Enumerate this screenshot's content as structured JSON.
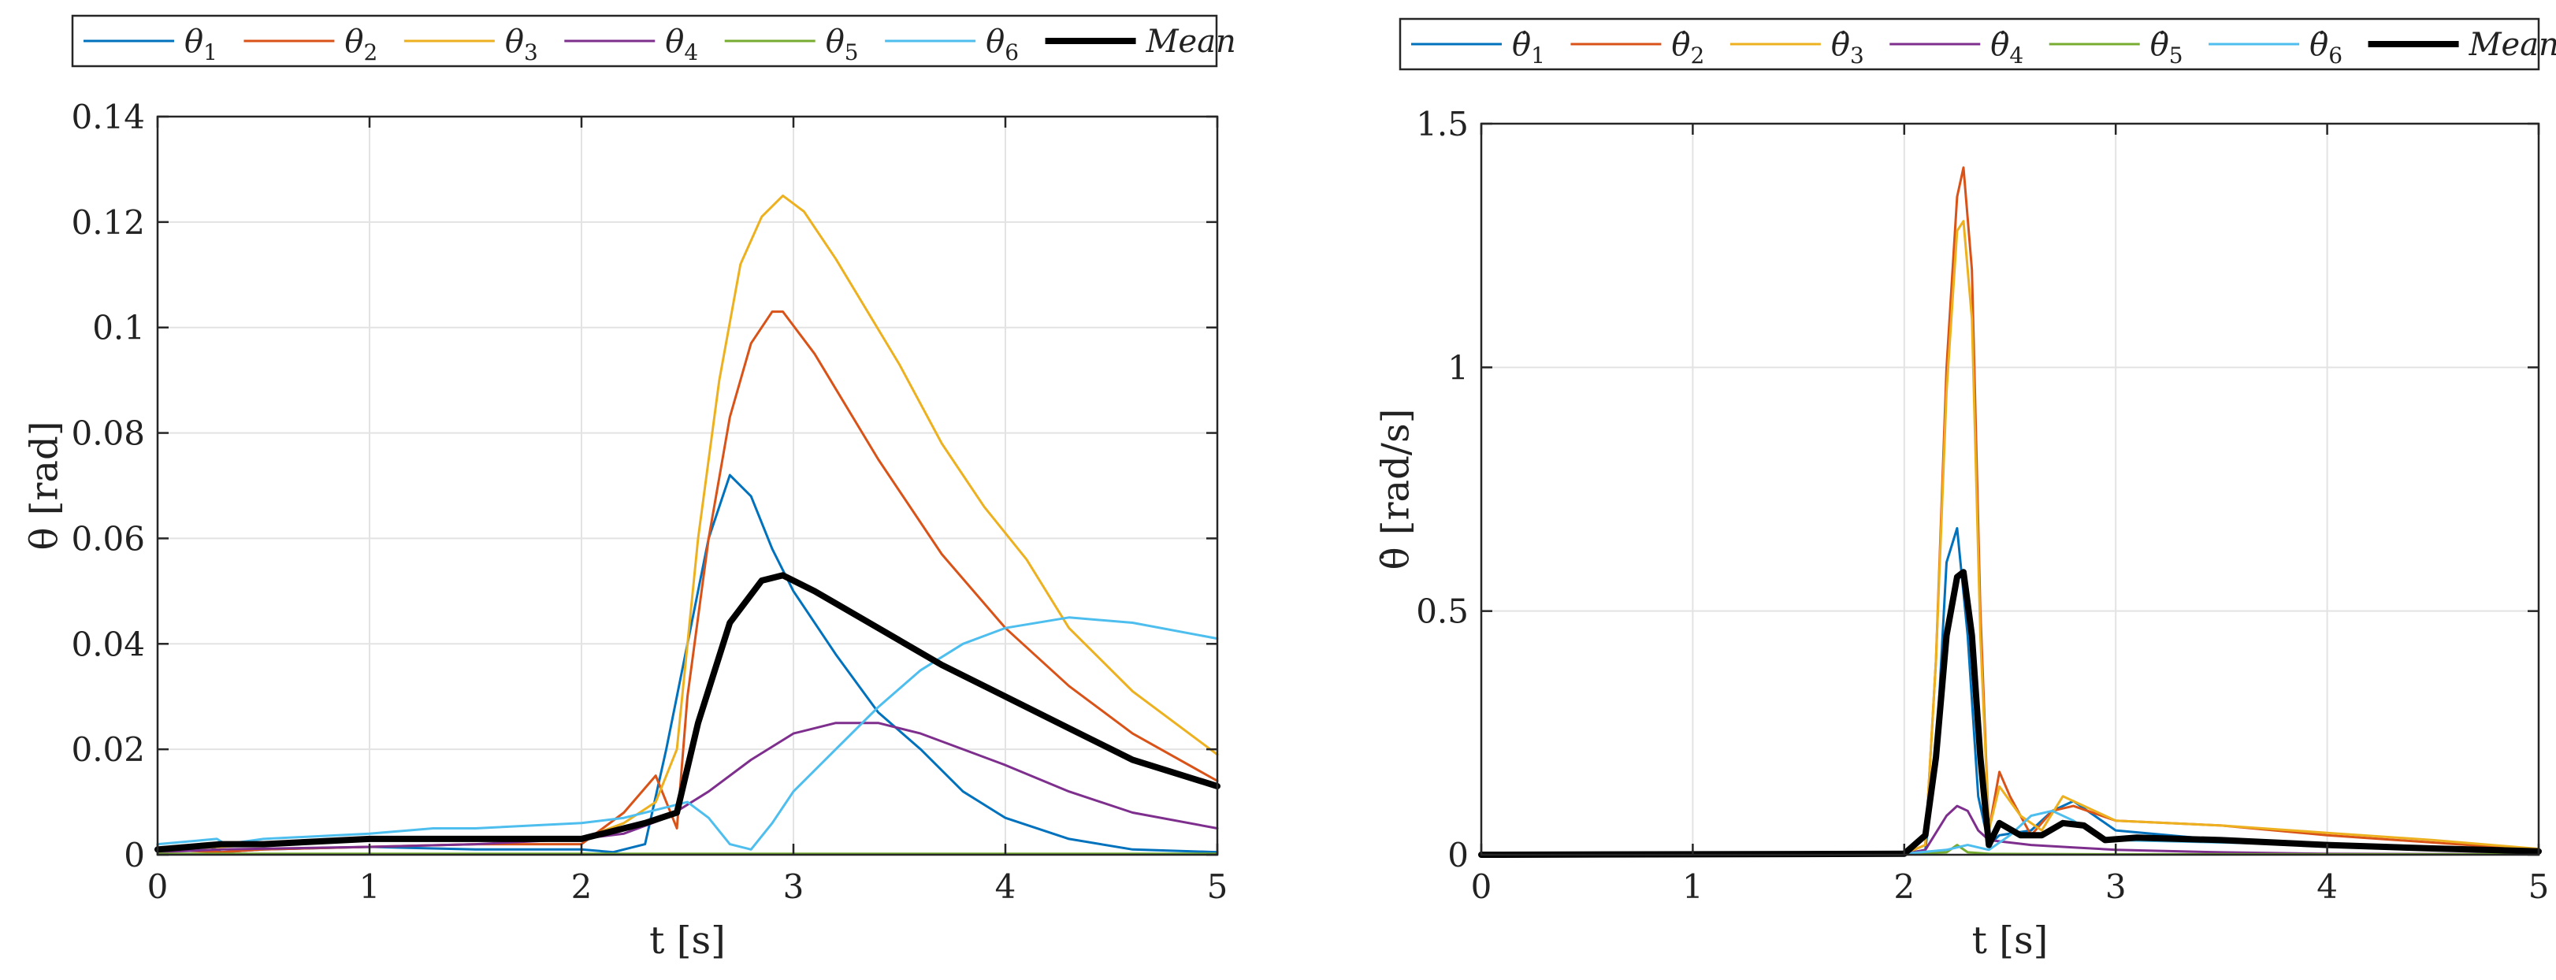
{
  "chart_data": [
    {
      "type": "line",
      "id": "angle",
      "title": "",
      "xlabel": "t [s]",
      "ylabel": "θ [rad]",
      "xlim": [
        0,
        5
      ],
      "ylim": [
        0,
        0.14
      ],
      "xticks": [
        0,
        1,
        2,
        3,
        4,
        5
      ],
      "xtick_labels": [
        "0",
        "1",
        "2",
        "3",
        "4",
        "5"
      ],
      "yticks": [
        0,
        0.02,
        0.04,
        0.06,
        0.08,
        0.1,
        0.12,
        0.14
      ],
      "ytick_labels": [
        "0",
        "0.02",
        "0.04",
        "0.06",
        "0.08",
        "0.1",
        "0.12",
        "0.14"
      ],
      "grid": true,
      "legend_placement": "top",
      "series": [
        {
          "name": "θ1",
          "label_base": "θ",
          "label_sub": "1",
          "color": "#0072BD",
          "width": 3,
          "x": [
            0,
            0.25,
            0.3,
            0.5,
            1.0,
            1.5,
            2.0,
            2.15,
            2.3,
            2.4,
            2.5,
            2.6,
            2.7,
            2.8,
            2.9,
            3.0,
            3.2,
            3.4,
            3.6,
            3.8,
            4.0,
            4.3,
            4.6,
            5.0
          ],
          "y": [
            0.001,
            0.0015,
            0.0005,
            0.001,
            0.0015,
            0.001,
            0.001,
            0.0005,
            0.002,
            0.02,
            0.04,
            0.06,
            0.072,
            0.068,
            0.058,
            0.05,
            0.038,
            0.027,
            0.02,
            0.012,
            0.007,
            0.003,
            0.001,
            0.0005
          ]
        },
        {
          "name": "θ2",
          "label_base": "θ",
          "label_sub": "2",
          "color": "#D95319",
          "width": 3,
          "x": [
            0,
            0.3,
            0.5,
            1.0,
            1.5,
            2.0,
            2.2,
            2.35,
            2.45,
            2.5,
            2.6,
            2.7,
            2.8,
            2.9,
            2.95,
            3.1,
            3.4,
            3.7,
            4.0,
            4.3,
            4.6,
            5.0
          ],
          "y": [
            0.001,
            0.0005,
            0.001,
            0.0015,
            0.002,
            0.002,
            0.008,
            0.015,
            0.005,
            0.03,
            0.06,
            0.083,
            0.097,
            0.103,
            0.103,
            0.095,
            0.075,
            0.057,
            0.043,
            0.032,
            0.023,
            0.014
          ]
        },
        {
          "name": "θ3",
          "label_base": "θ",
          "label_sub": "3",
          "color": "#EDB120",
          "width": 3,
          "x": [
            0,
            0.3,
            0.5,
            1.0,
            1.5,
            2.0,
            2.2,
            2.35,
            2.45,
            2.55,
            2.65,
            2.75,
            2.85,
            2.95,
            3.05,
            3.2,
            3.5,
            3.7,
            3.9,
            4.1,
            4.3,
            4.6,
            5.0
          ],
          "y": [
            0.001,
            0.0015,
            0.002,
            0.003,
            0.003,
            0.003,
            0.006,
            0.01,
            0.02,
            0.06,
            0.09,
            0.112,
            0.121,
            0.125,
            0.122,
            0.113,
            0.093,
            0.078,
            0.066,
            0.056,
            0.043,
            0.031,
            0.019
          ]
        },
        {
          "name": "θ4",
          "label_base": "θ",
          "label_sub": "4",
          "color": "#7E2F8E",
          "width": 3,
          "x": [
            0,
            0.3,
            1.0,
            1.5,
            2.0,
            2.2,
            2.4,
            2.6,
            2.8,
            3.0,
            3.2,
            3.4,
            3.6,
            3.8,
            4.0,
            4.3,
            4.6,
            5.0
          ],
          "y": [
            0.0005,
            0.001,
            0.0015,
            0.002,
            0.003,
            0.004,
            0.007,
            0.012,
            0.018,
            0.023,
            0.025,
            0.025,
            0.023,
            0.02,
            0.017,
            0.012,
            0.008,
            0.005
          ]
        },
        {
          "name": "θ5",
          "label_base": "θ",
          "label_sub": "5",
          "color": "#77AC30",
          "width": 3,
          "x": [
            0,
            1.0,
            2.0,
            3.0,
            4.0,
            5.0
          ],
          "y": [
            0.0002,
            0.0002,
            0.0002,
            0.0002,
            0.0002,
            0.0002
          ]
        },
        {
          "name": "θ6",
          "label_base": "θ",
          "label_sub": "6",
          "color": "#4DBEEE",
          "width": 3,
          "x": [
            0,
            0.28,
            0.32,
            0.5,
            1.0,
            1.3,
            1.5,
            2.0,
            2.2,
            2.4,
            2.5,
            2.6,
            2.7,
            2.8,
            2.9,
            3.0,
            3.2,
            3.4,
            3.6,
            3.8,
            4.0,
            4.3,
            4.6,
            5.0
          ],
          "y": [
            0.002,
            0.003,
            0.002,
            0.003,
            0.004,
            0.005,
            0.005,
            0.006,
            0.007,
            0.009,
            0.01,
            0.007,
            0.002,
            0.001,
            0.006,
            0.012,
            0.02,
            0.028,
            0.035,
            0.04,
            0.043,
            0.045,
            0.044,
            0.041
          ]
        },
        {
          "name": "Mean",
          "label_base": "Mean",
          "label_sub": "",
          "color": "#000000",
          "width": 8,
          "x": [
            0,
            0.3,
            0.5,
            1.0,
            1.5,
            2.0,
            2.1,
            2.3,
            2.45,
            2.55,
            2.7,
            2.85,
            2.95,
            3.1,
            3.4,
            3.7,
            4.0,
            4.3,
            4.6,
            5.0
          ],
          "y": [
            0.001,
            0.002,
            0.002,
            0.003,
            0.003,
            0.003,
            0.004,
            0.006,
            0.008,
            0.025,
            0.044,
            0.052,
            0.053,
            0.05,
            0.043,
            0.036,
            0.03,
            0.024,
            0.018,
            0.013
          ]
        }
      ]
    },
    {
      "type": "line",
      "id": "velocity",
      "title": "",
      "xlabel": "t [s]",
      "ylabel": "θ̇ [rad/s]",
      "xlim": [
        0,
        5
      ],
      "ylim": [
        0,
        1.5
      ],
      "xticks": [
        0,
        1,
        2,
        3,
        4,
        5
      ],
      "xtick_labels": [
        "0",
        "1",
        "2",
        "3",
        "4",
        "5"
      ],
      "yticks": [
        0,
        0.5,
        1,
        1.5
      ],
      "ytick_labels": [
        "0",
        "0.5",
        "1",
        "1.5"
      ],
      "grid": true,
      "legend_placement": "top",
      "series": [
        {
          "name": "θ̇1",
          "label_base": "θ̇",
          "label_sub": "1",
          "color": "#0072BD",
          "width": 3,
          "x": [
            0,
            2.0,
            2.1,
            2.15,
            2.2,
            2.25,
            2.3,
            2.35,
            2.4,
            2.45,
            2.6,
            2.7,
            2.8,
            2.9,
            3.0,
            3.5,
            4.0,
            4.5,
            5.0
          ],
          "y": [
            0,
            0.002,
            0.01,
            0.2,
            0.6,
            0.67,
            0.45,
            0.12,
            0.02,
            0.04,
            0.05,
            0.09,
            0.11,
            0.08,
            0.05,
            0.03,
            0.02,
            0.01,
            0.005
          ]
        },
        {
          "name": "θ̇2",
          "label_base": "θ̇",
          "label_sub": "2",
          "color": "#D95319",
          "width": 3,
          "x": [
            0,
            2.0,
            2.1,
            2.15,
            2.2,
            2.25,
            2.28,
            2.32,
            2.36,
            2.4,
            2.45,
            2.5,
            2.6,
            2.7,
            2.8,
            3.0,
            3.5,
            4.0,
            4.5,
            5.0
          ],
          "y": [
            0,
            0.002,
            0.02,
            0.4,
            1.0,
            1.35,
            1.41,
            1.2,
            0.5,
            0.05,
            0.17,
            0.12,
            0.04,
            0.09,
            0.1,
            0.07,
            0.06,
            0.04,
            0.025,
            0.01
          ]
        },
        {
          "name": "θ̇3",
          "label_base": "θ̇",
          "label_sub": "3",
          "color": "#EDB120",
          "width": 3,
          "x": [
            0,
            2.0,
            2.1,
            2.15,
            2.2,
            2.25,
            2.28,
            2.32,
            2.36,
            2.4,
            2.45,
            2.55,
            2.65,
            2.75,
            2.85,
            3.0,
            3.5,
            4.0,
            4.5,
            5.0
          ],
          "y": [
            0,
            0.002,
            0.02,
            0.4,
            0.95,
            1.28,
            1.3,
            1.1,
            0.45,
            0.05,
            0.14,
            0.08,
            0.05,
            0.12,
            0.1,
            0.07,
            0.06,
            0.045,
            0.03,
            0.012
          ]
        },
        {
          "name": "θ̇4",
          "label_base": "θ̇",
          "label_sub": "4",
          "color": "#7E2F8E",
          "width": 3,
          "x": [
            0,
            2.0,
            2.1,
            2.2,
            2.25,
            2.3,
            2.35,
            2.4,
            2.5,
            2.6,
            2.8,
            3.0,
            3.5,
            4.0,
            5.0
          ],
          "y": [
            0,
            0.001,
            0.01,
            0.08,
            0.1,
            0.09,
            0.05,
            0.03,
            0.025,
            0.02,
            0.015,
            0.01,
            0.005,
            0.002,
            0.001
          ]
        },
        {
          "name": "θ̇5",
          "label_base": "θ̇",
          "label_sub": "5",
          "color": "#77AC30",
          "width": 3,
          "x": [
            0,
            2.0,
            2.2,
            2.25,
            2.3,
            2.4,
            3.0,
            4.0,
            5.0
          ],
          "y": [
            0,
            0.001,
            0.005,
            0.02,
            0.005,
            0.002,
            0.001,
            0.001,
            0.001
          ]
        },
        {
          "name": "θ̇6",
          "label_base": "θ̇",
          "label_sub": "6",
          "color": "#4DBEEE",
          "width": 3,
          "x": [
            0,
            2.0,
            2.2,
            2.3,
            2.4,
            2.5,
            2.6,
            2.7,
            2.8,
            2.9,
            3.0,
            3.5,
            4.0,
            4.5,
            5.0
          ],
          "y": [
            0,
            0.002,
            0.01,
            0.02,
            0.01,
            0.04,
            0.08,
            0.09,
            0.07,
            0.04,
            0.03,
            0.025,
            0.02,
            0.015,
            0.01
          ]
        },
        {
          "name": "Mean",
          "label_base": "Mean",
          "label_sub": "",
          "color": "#000000",
          "width": 8,
          "x": [
            0,
            2.0,
            2.1,
            2.15,
            2.2,
            2.25,
            2.28,
            2.32,
            2.36,
            2.4,
            2.45,
            2.55,
            2.65,
            2.75,
            2.85,
            2.95,
            3.1,
            3.5,
            4.0,
            4.5,
            5.0
          ],
          "y": [
            0,
            0.002,
            0.04,
            0.2,
            0.45,
            0.57,
            0.58,
            0.45,
            0.2,
            0.02,
            0.065,
            0.04,
            0.04,
            0.065,
            0.06,
            0.03,
            0.035,
            0.03,
            0.02,
            0.013,
            0.007
          ]
        }
      ]
    }
  ]
}
